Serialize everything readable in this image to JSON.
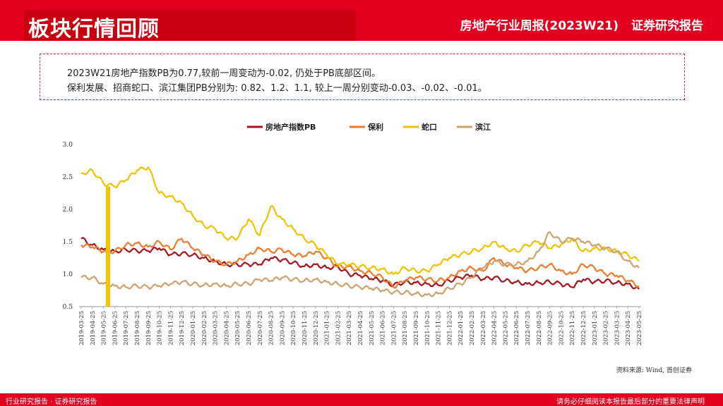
{
  "header": {
    "section_title": "板块行情回顾",
    "report_title": "房地产行业周报(2023W21)",
    "report_type": "证券研究报告"
  },
  "summary": {
    "line1": "2023W21房地产指数PB为0.77,较前一周变动为-0.02, 仍处于PB底部区间。",
    "line2": "保利发展、招商蛇口、滨江集团PB分别为: 0.82、1.2、1.1, 较上一周分别变动-0.03、-0.02、-0.01。"
  },
  "source": "资料来源: Wind, 首创证券",
  "footer": {
    "left": "行业研究报告 · 证券研究报告",
    "right": "请务必仔细阅读本报告最后部分的重要法律声明"
  },
  "colors": {
    "brand_red": "#e3001f",
    "index": "#a5141d",
    "poly": "#ee7a2c",
    "shekou": "#f2c200",
    "binjiang": "#d2a06c"
  },
  "chart_data": {
    "type": "line",
    "ylim": [
      0.5,
      3.0
    ],
    "yticks": [
      "0.5",
      "1.0",
      "1.5",
      "2.0",
      "2.5",
      "3.0"
    ],
    "xlabel": "",
    "ylabel": "",
    "legend_position": "top-center",
    "categories": [
      "2019-03-25",
      "2019-04-25",
      "2019-05-25",
      "2019-06-25",
      "2019-07-25",
      "2019-08-25",
      "2019-09-25",
      "2019-10-25",
      "2019-11-25",
      "2019-12-25",
      "2020-01-25",
      "2020-02-25",
      "2020-03-25",
      "2020-04-25",
      "2020-05-25",
      "2020-06-25",
      "2020-07-25",
      "2020-08-25",
      "2020-09-25",
      "2020-10-25",
      "2020-11-25",
      "2020-12-25",
      "2021-01-25",
      "2021-02-25",
      "2021-03-25",
      "2021-04-25",
      "2021-05-25",
      "2021-06-25",
      "2021-07-25",
      "2021-08-25",
      "2021-09-25",
      "2021-10-25",
      "2021-11-25",
      "2021-12-25",
      "2022-01-25",
      "2022-02-25",
      "2022-03-25",
      "2022-04-25",
      "2022-05-25",
      "2022-06-25",
      "2022-07-25",
      "2022-08-25",
      "2022-09-25",
      "2022-10-25",
      "2022-11-25",
      "2022-12-25",
      "2023-01-25",
      "2023-02-25",
      "2023-03-25",
      "2023-04-25",
      "2023-05-25"
    ],
    "series": [
      {
        "name": "房地产指数PB",
        "color": "#a5141d",
        "values": [
          1.55,
          1.45,
          1.38,
          1.35,
          1.38,
          1.36,
          1.36,
          1.4,
          1.3,
          1.32,
          1.3,
          1.25,
          1.2,
          1.15,
          1.15,
          1.15,
          1.15,
          1.25,
          1.22,
          1.18,
          1.12,
          1.15,
          1.1,
          1.12,
          1.0,
          0.98,
          0.93,
          0.9,
          0.83,
          0.88,
          0.87,
          0.85,
          0.83,
          0.9,
          0.95,
          0.98,
          0.92,
          0.95,
          0.9,
          0.88,
          0.85,
          0.87,
          0.88,
          0.85,
          0.8,
          0.92,
          0.88,
          0.9,
          0.87,
          0.85,
          0.77
        ]
      },
      {
        "name": "保利",
        "color": "#ee7a2c",
        "values": [
          1.45,
          1.42,
          1.35,
          1.35,
          1.45,
          1.48,
          1.42,
          1.5,
          1.38,
          1.55,
          1.4,
          1.3,
          1.2,
          1.15,
          1.2,
          1.3,
          1.4,
          1.35,
          1.38,
          1.3,
          1.28,
          1.35,
          1.25,
          1.12,
          1.12,
          1.05,
          1.02,
          0.95,
          0.8,
          0.9,
          0.95,
          0.92,
          0.9,
          0.95,
          1.05,
          1.1,
          1.05,
          1.25,
          1.15,
          1.1,
          1.05,
          1.1,
          1.15,
          1.05,
          1.0,
          1.15,
          1.1,
          1.0,
          0.98,
          0.9,
          0.82
        ]
      },
      {
        "name": "蛇口",
        "color": "#f2c200",
        "values": [
          2.55,
          2.6,
          2.4,
          2.35,
          2.45,
          2.6,
          2.65,
          2.25,
          2.2,
          2.1,
          1.9,
          1.75,
          1.7,
          1.55,
          1.55,
          1.85,
          1.6,
          2.05,
          1.85,
          1.7,
          1.55,
          1.45,
          1.3,
          1.15,
          1.15,
          1.12,
          1.1,
          1.08,
          1.0,
          1.1,
          1.05,
          1.05,
          1.15,
          1.25,
          1.3,
          1.35,
          1.4,
          1.5,
          1.4,
          1.35,
          1.45,
          1.5,
          1.4,
          1.45,
          1.55,
          1.35,
          1.4,
          1.4,
          1.35,
          1.3,
          1.2
        ]
      },
      {
        "name": "滨江",
        "color": "#d2a06c",
        "values": [
          0.95,
          0.95,
          0.85,
          0.82,
          0.8,
          0.82,
          0.8,
          0.82,
          0.85,
          0.88,
          0.85,
          0.83,
          0.85,
          0.82,
          0.85,
          0.85,
          0.92,
          0.9,
          0.95,
          0.92,
          0.9,
          0.92,
          0.88,
          0.85,
          0.82,
          0.8,
          0.78,
          0.75,
          0.72,
          0.72,
          0.7,
          0.68,
          0.7,
          0.78,
          0.85,
          0.95,
          1.1,
          1.2,
          1.15,
          1.15,
          1.2,
          1.35,
          1.65,
          1.5,
          1.55,
          1.5,
          1.45,
          1.4,
          1.35,
          1.2,
          1.1
        ]
      }
    ]
  }
}
